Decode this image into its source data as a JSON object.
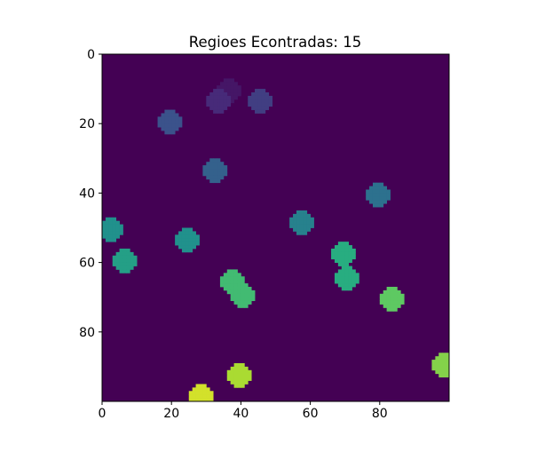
{
  "chart_data": {
    "type": "heatmap",
    "title": "Regioes Econtradas: 15",
    "xlabel": "",
    "ylabel": "",
    "xlim": [
      0,
      100
    ],
    "ylim": [
      100,
      0
    ],
    "y_inverted": true,
    "grid": false,
    "colormap": "viridis",
    "background_value": 0,
    "value_range": [
      0,
      16
    ],
    "x_ticks": [
      0,
      20,
      40,
      60,
      80
    ],
    "y_ticks": [
      0,
      20,
      40,
      60,
      80
    ],
    "x_tick_labels": [
      "0",
      "20",
      "40",
      "60",
      "80"
    ],
    "y_tick_labels": [
      "0",
      "20",
      "40",
      "60",
      "80"
    ],
    "regions": [
      {
        "label": 1,
        "x": 36,
        "y": 10,
        "r": 3.5
      },
      {
        "label": 2,
        "x": 33,
        "y": 13,
        "r": 3.5
      },
      {
        "label": 3,
        "x": 45,
        "y": 13,
        "r": 3.5
      },
      {
        "label": 4,
        "x": 19,
        "y": 19,
        "r": 3.5
      },
      {
        "label": 5,
        "x": 32,
        "y": 33,
        "r": 3.5
      },
      {
        "label": 6,
        "x": 79,
        "y": 40,
        "r": 3.5
      },
      {
        "label": 7,
        "x": 57,
        "y": 48,
        "r": 3.5
      },
      {
        "label": 8,
        "x": 2,
        "y": 50,
        "r": 3.5
      },
      {
        "label": 8,
        "x": 24,
        "y": 53,
        "r": 3.5
      },
      {
        "label": 9,
        "x": 6,
        "y": 59,
        "r": 3.5
      },
      {
        "label": 10,
        "x": 69,
        "y": 57,
        "r": 3.5
      },
      {
        "label": 10,
        "x": 70,
        "y": 64,
        "r": 3.5
      },
      {
        "label": 11,
        "x": 37,
        "y": 65,
        "r": 3.5
      },
      {
        "label": 11,
        "x": 40,
        "y": 69,
        "r": 3.5
      },
      {
        "label": 12,
        "x": 83,
        "y": 70,
        "r": 3.5
      },
      {
        "label": 13,
        "x": 98,
        "y": 89,
        "r": 3.5
      },
      {
        "label": 14,
        "x": 39,
        "y": 92,
        "r": 3.5
      },
      {
        "label": 15,
        "x": 28,
        "y": 98,
        "r": 3.5
      }
    ]
  }
}
